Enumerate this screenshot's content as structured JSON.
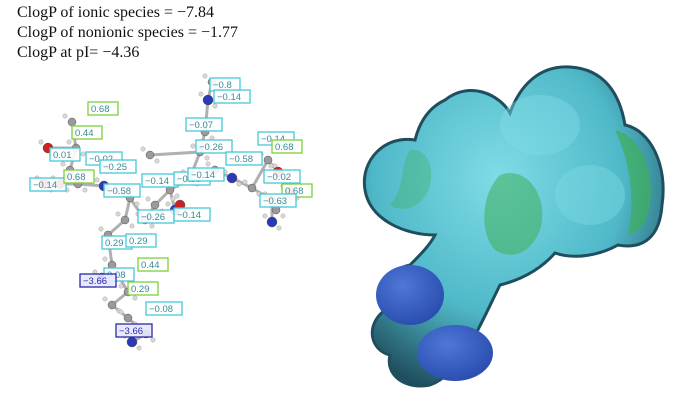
{
  "header": {
    "lines": [
      "ClogP of ionic species = −7.84",
      "ClogP of nonionic species = −1.77",
      "ClogP at pI= −4.36"
    ]
  },
  "molecule": {
    "colors": {
      "hydrophobic_box": "#7ccf3a",
      "neutral_box": "#45c8d6",
      "charged_box": "#2a2aa8",
      "bond": "#b0b0b0",
      "carbon": "#9a9a9a",
      "hydrogen": "#d8d8d8",
      "oxygen": "#cc2222",
      "nitrogen": "#2a3ab5"
    },
    "contributions": [
      {
        "v": "0.68",
        "c": "g"
      },
      {
        "v": "0.44",
        "c": "g"
      },
      {
        "v": "0.01",
        "c": "c"
      },
      {
        "v": "−0.02",
        "c": "c"
      },
      {
        "v": "−0.25",
        "c": "c"
      },
      {
        "v": "−0.14",
        "c": "c"
      },
      {
        "v": "0.68",
        "c": "g"
      },
      {
        "v": "−0.58",
        "c": "c"
      },
      {
        "v": "−0.14",
        "c": "c"
      },
      {
        "v": "−0.26",
        "c": "c"
      },
      {
        "v": "−0.58",
        "c": "c"
      },
      {
        "v": "−0.14",
        "c": "c"
      },
      {
        "v": "−0.14",
        "c": "c"
      },
      {
        "v": "−0.8",
        "c": "c"
      },
      {
        "v": "−0.14",
        "c": "c"
      },
      {
        "v": "−0.07",
        "c": "c"
      },
      {
        "v": "−0.26",
        "c": "c"
      },
      {
        "v": "−0.58",
        "c": "c"
      },
      {
        "v": "−0.14",
        "c": "c"
      },
      {
        "v": "0.68",
        "c": "g"
      },
      {
        "v": "−0.02",
        "c": "c"
      },
      {
        "v": "0.68",
        "c": "g"
      },
      {
        "v": "−0.63",
        "c": "c"
      },
      {
        "v": "0.29",
        "c": "c"
      },
      {
        "v": "0.29",
        "c": "c"
      },
      {
        "v": "0.44",
        "c": "g"
      },
      {
        "v": "0.08",
        "c": "c"
      },
      {
        "v": "−3.66",
        "c": "n"
      },
      {
        "v": "0.29",
        "c": "g"
      },
      {
        "v": "−0.08",
        "c": "c"
      },
      {
        "v": "−3.66",
        "c": "n"
      }
    ]
  },
  "surface": {
    "colors": {
      "outline": "#1f4e5e",
      "body": "#4fb8c8",
      "highlight": "#7fdce6",
      "hydrophobic": "#3fae5a",
      "charged": "#2a4fb0"
    }
  }
}
